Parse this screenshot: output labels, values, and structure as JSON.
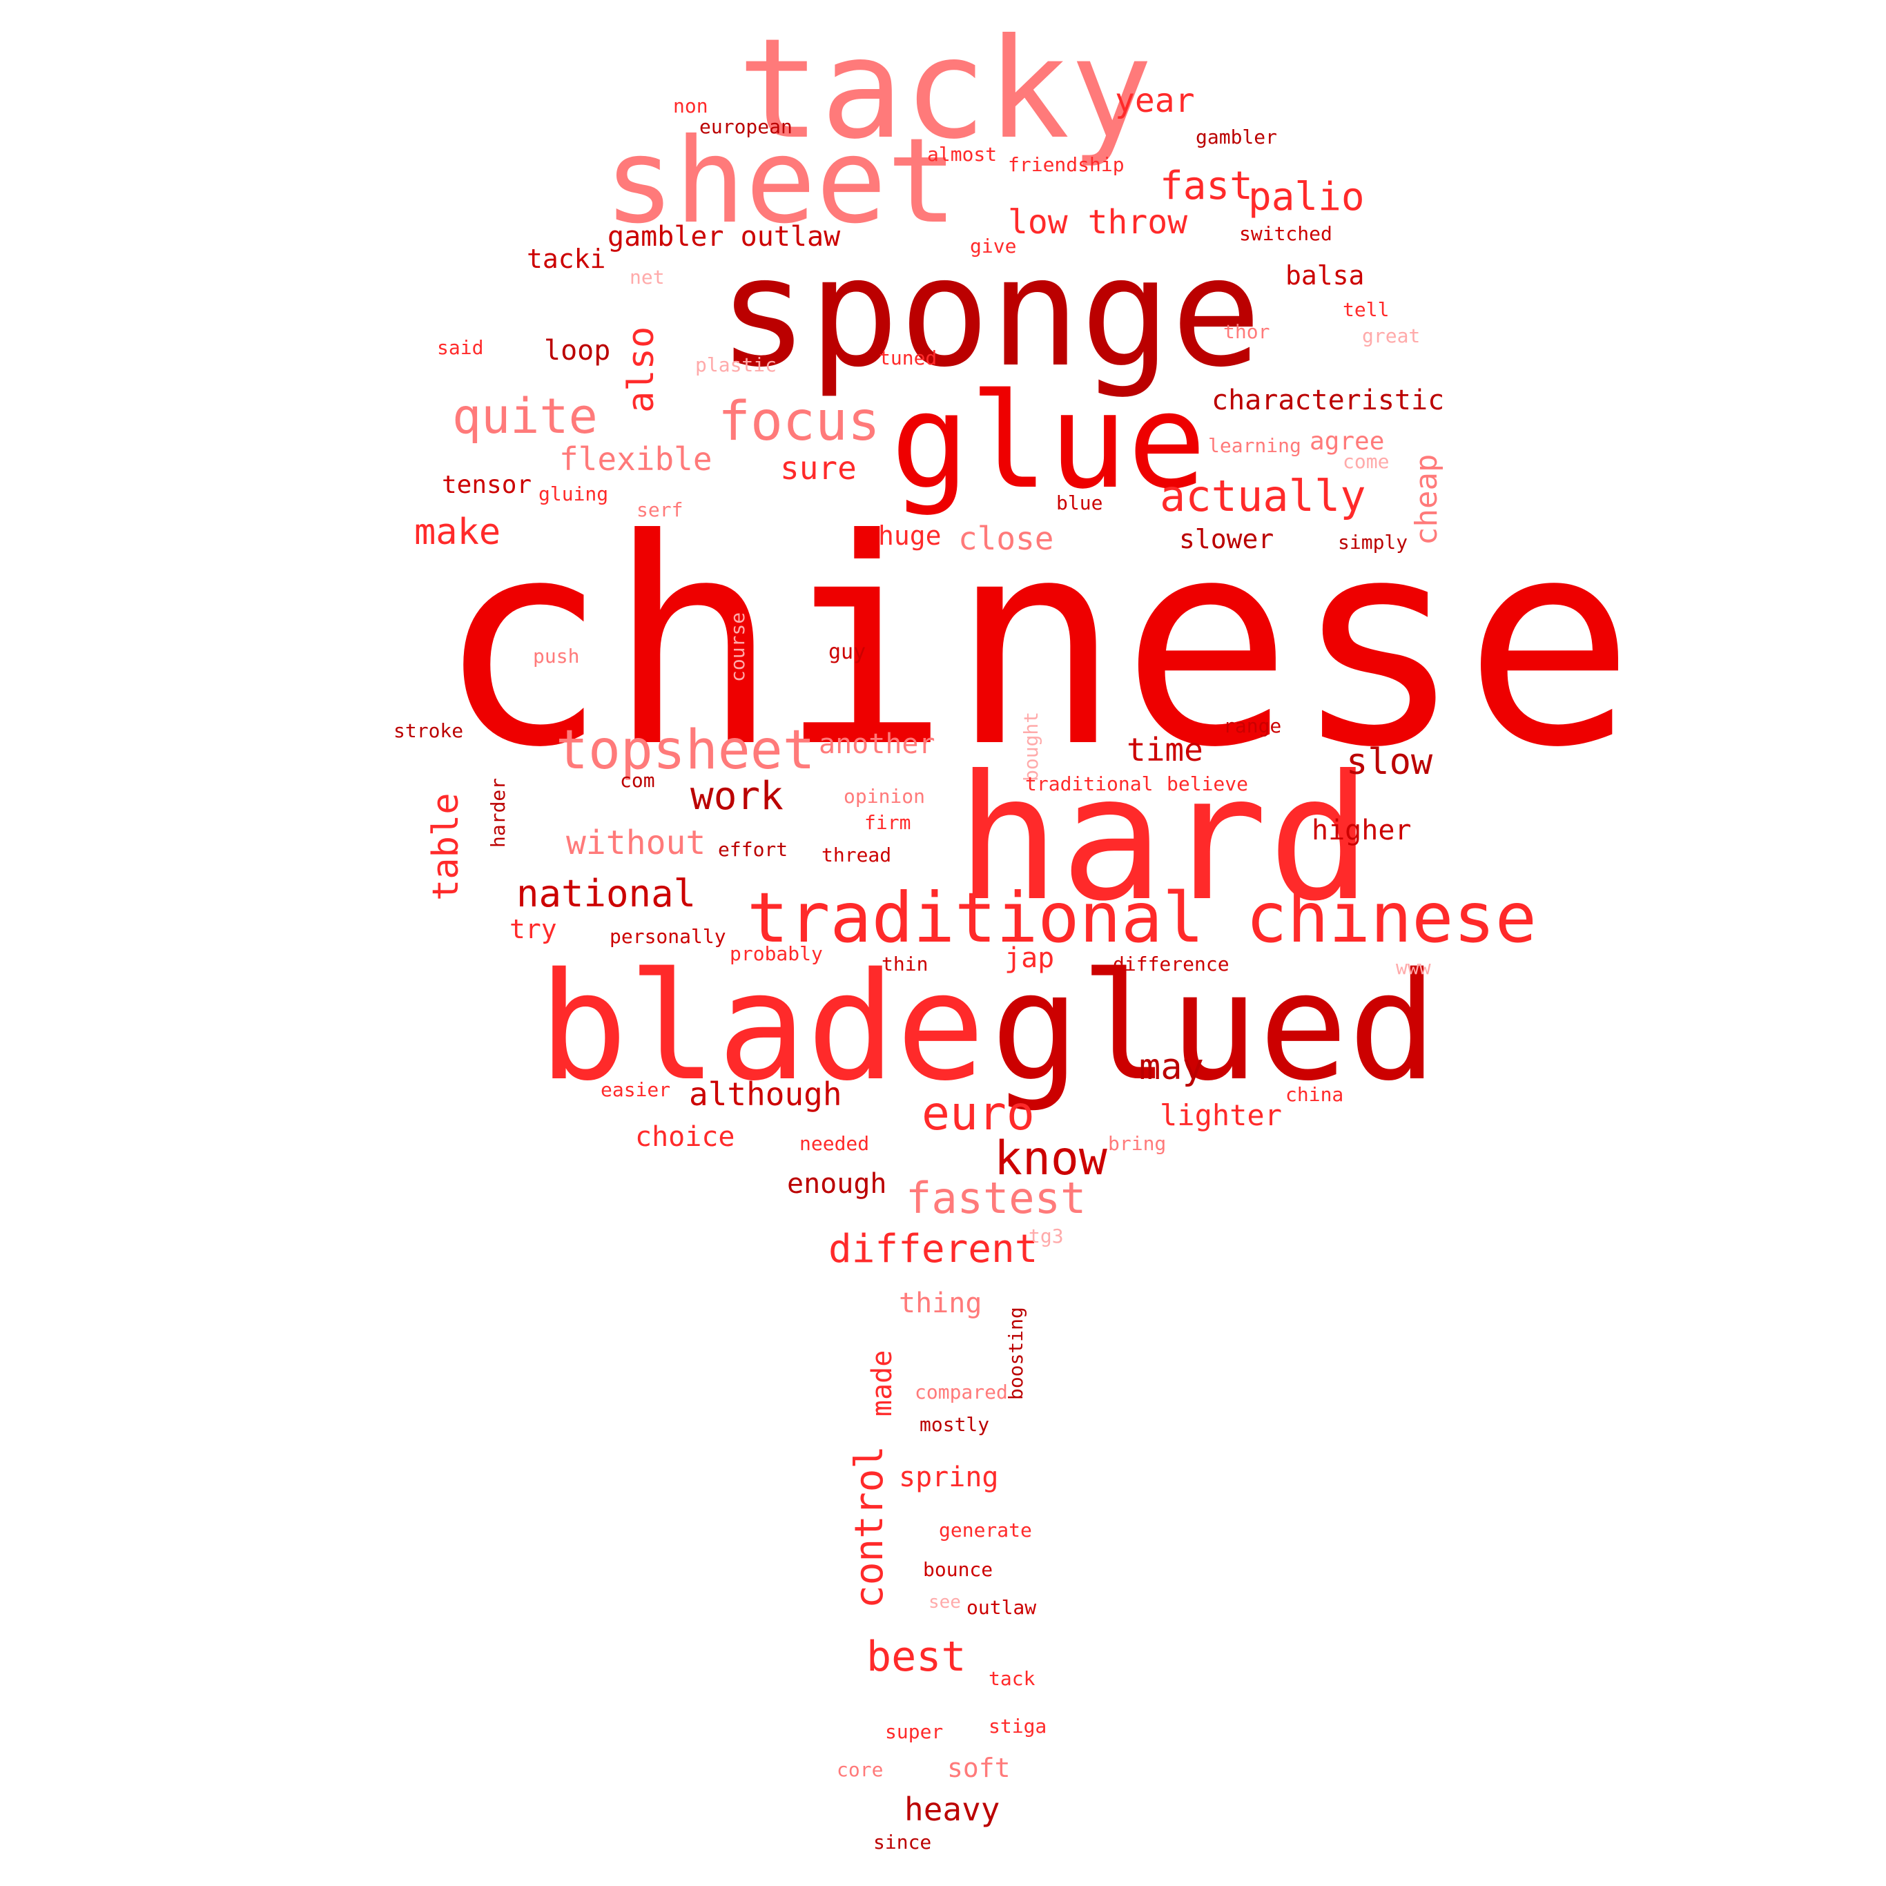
{
  "palette": {
    "bright": "#ee0000",
    "red": "#ff2a2a",
    "pink": "#ff7a7a",
    "light": "#ffaaaa",
    "dark": "#bb0000",
    "deep": "#cc0000"
  },
  "words": [
    {
      "text": "chinese",
      "color": "bright"
    },
    {
      "text": "sponge",
      "color": "dark"
    },
    {
      "text": "tacky",
      "color": "pink"
    },
    {
      "text": "sheet",
      "color": "pink"
    },
    {
      "text": "glue",
      "color": "bright"
    },
    {
      "text": "hard",
      "color": "red"
    },
    {
      "text": "blade",
      "color": "red"
    },
    {
      "text": "glued",
      "color": "deep"
    },
    {
      "text": "traditional chinese",
      "color": "red"
    },
    {
      "text": "topsheet",
      "color": "pink"
    },
    {
      "text": "focus",
      "color": "pink"
    },
    {
      "text": "quite",
      "color": "pink"
    },
    {
      "text": "also",
      "color": "red"
    },
    {
      "text": "actually",
      "color": "red"
    },
    {
      "text": "euro",
      "color": "red"
    },
    {
      "text": "know",
      "color": "deep"
    },
    {
      "text": "fastest",
      "color": "pink"
    },
    {
      "text": "different",
      "color": "red"
    },
    {
      "text": "year",
      "color": "red"
    },
    {
      "text": "fast",
      "color": "red"
    },
    {
      "text": "palio",
      "color": "red"
    },
    {
      "text": "low throw",
      "color": "red"
    },
    {
      "text": "gambler outlaw",
      "color": "deep"
    },
    {
      "text": "tacki",
      "color": "deep"
    },
    {
      "text": "balsa",
      "color": "deep"
    },
    {
      "text": "loop",
      "color": "dark"
    },
    {
      "text": "characteristic",
      "color": "dark"
    },
    {
      "text": "flexible",
      "color": "pink"
    },
    {
      "text": "sure",
      "color": "red"
    },
    {
      "text": "tensor",
      "color": "deep"
    },
    {
      "text": "make",
      "color": "red"
    },
    {
      "text": "huge",
      "color": "red"
    },
    {
      "text": "close",
      "color": "pink"
    },
    {
      "text": "slower",
      "color": "dark"
    },
    {
      "text": "cheap",
      "color": "pink"
    },
    {
      "text": "work",
      "color": "dark"
    },
    {
      "text": "slow",
      "color": "dark"
    },
    {
      "text": "time",
      "color": "deep"
    },
    {
      "text": "another",
      "color": "pink"
    },
    {
      "text": "table",
      "color": "red"
    },
    {
      "text": "without",
      "color": "pink"
    },
    {
      "text": "national",
      "color": "deep"
    },
    {
      "text": "higher",
      "color": "deep"
    },
    {
      "text": "may",
      "color": "dark"
    },
    {
      "text": "although",
      "color": "deep"
    },
    {
      "text": "lighter",
      "color": "red"
    },
    {
      "text": "choice",
      "color": "red"
    },
    {
      "text": "enough",
      "color": "dark"
    },
    {
      "text": "best",
      "color": "red"
    },
    {
      "text": "control",
      "color": "red"
    },
    {
      "text": "made",
      "color": "red"
    },
    {
      "text": "spring",
      "color": "red"
    },
    {
      "text": "thing",
      "color": "pink"
    },
    {
      "text": "heavy",
      "color": "dark"
    },
    {
      "text": "soft",
      "color": "pink"
    },
    {
      "text": "non",
      "color": "red"
    },
    {
      "text": "european",
      "color": "dark"
    },
    {
      "text": "almost",
      "color": "red"
    },
    {
      "text": "friendship",
      "color": "red"
    },
    {
      "text": "gambler",
      "color": "dark"
    },
    {
      "text": "switched",
      "color": "deep"
    },
    {
      "text": "give",
      "color": "red"
    },
    {
      "text": "net",
      "color": "light"
    },
    {
      "text": "tell",
      "color": "red"
    },
    {
      "text": "thor",
      "color": "pink"
    },
    {
      "text": "great",
      "color": "light"
    },
    {
      "text": "said",
      "color": "red"
    },
    {
      "text": "plastic",
      "color": "light"
    },
    {
      "text": "tuned",
      "color": "red"
    },
    {
      "text": "learning",
      "color": "pink"
    },
    {
      "text": "agree",
      "color": "pink"
    },
    {
      "text": "come",
      "color": "light"
    },
    {
      "text": "gluing",
      "color": "red"
    },
    {
      "text": "serf",
      "color": "pink"
    },
    {
      "text": "blue",
      "color": "deep"
    },
    {
      "text": "simply",
      "color": "dark"
    },
    {
      "text": "push",
      "color": "pink"
    },
    {
      "text": "course",
      "color": "light"
    },
    {
      "text": "guy",
      "color": "deep"
    },
    {
      "text": "stroke",
      "color": "dark"
    },
    {
      "text": "bought",
      "color": "light"
    },
    {
      "text": "range",
      "color": "deep"
    },
    {
      "text": "com",
      "color": "dark"
    },
    {
      "text": "harder",
      "color": "dark"
    },
    {
      "text": "opinion",
      "color": "pink"
    },
    {
      "text": "traditional",
      "color": "red"
    },
    {
      "text": "believe",
      "color": "red"
    },
    {
      "text": "firm",
      "color": "red"
    },
    {
      "text": "effort",
      "color": "dark"
    },
    {
      "text": "thread",
      "color": "deep"
    },
    {
      "text": "try",
      "color": "red"
    },
    {
      "text": "personally",
      "color": "deep"
    },
    {
      "text": "probably",
      "color": "red"
    },
    {
      "text": "jap",
      "color": "red"
    },
    {
      "text": "thin",
      "color": "deep"
    },
    {
      "text": "difference",
      "color": "deep"
    },
    {
      "text": "www",
      "color": "light"
    },
    {
      "text": "easier",
      "color": "red"
    },
    {
      "text": "china",
      "color": "red"
    },
    {
      "text": "needed",
      "color": "red"
    },
    {
      "text": "bring",
      "color": "pink"
    },
    {
      "text": "tg3",
      "color": "light"
    },
    {
      "text": "boosting",
      "color": "dark"
    },
    {
      "text": "compared",
      "color": "pink"
    },
    {
      "text": "mostly",
      "color": "dark"
    },
    {
      "text": "generate",
      "color": "red"
    },
    {
      "text": "bounce",
      "color": "deep"
    },
    {
      "text": "see",
      "color": "light"
    },
    {
      "text": "outlaw",
      "color": "deep"
    },
    {
      "text": "tack",
      "color": "red"
    },
    {
      "text": "super",
      "color": "red"
    },
    {
      "text": "stiga",
      "color": "red"
    },
    {
      "text": "core",
      "color": "pink"
    },
    {
      "text": "since",
      "color": "dark"
    }
  ]
}
